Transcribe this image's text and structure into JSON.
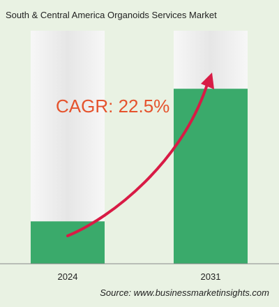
{
  "chart_data": {
    "type": "bar",
    "title": "South & Central America Organoids Services Market",
    "categories": [
      "2024",
      "2031"
    ],
    "values": [
      1.0,
      4.13
    ],
    "ylim": [
      0,
      5.5
    ],
    "annotation": "CAGR: 22.5%",
    "source": "Source: www.businessmarketinsights.com",
    "grid": false,
    "legend": "none"
  },
  "colors": {
    "background": "#e9f2e3",
    "bar_fill": "#3aaa6b",
    "bar_track": "#ebebeb",
    "arrow": "#d81b45",
    "annotation_text": "#e5532d",
    "axis": "#888888"
  }
}
